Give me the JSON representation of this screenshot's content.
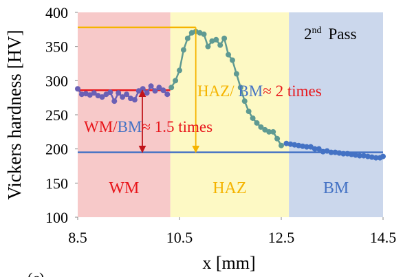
{
  "chart_data": {
    "type": "line",
    "y_label": "Vickers hardness [HV]",
    "x_label": "x [mm]",
    "panel_label": "(c)",
    "pass_label": {
      "main": "2",
      "sup": "nd",
      "rest": "Pass"
    },
    "xlim": [
      8.5,
      14.5
    ],
    "xticks": [
      8.5,
      10.5,
      12.5,
      14.5
    ],
    "ylim": [
      100,
      400
    ],
    "yticks": [
      100,
      150,
      200,
      250,
      300,
      350,
      400
    ],
    "regions": [
      {
        "label": "WM",
        "x": [
          8.5,
          10.32
        ],
        "fill": "#f7c9c9",
        "color": "#e8161b"
      },
      {
        "label": "HAZ",
        "x": [
          10.32,
          12.65
        ],
        "fill": "#fdf9c4",
        "color": "#f5b400"
      },
      {
        "label": "BM",
        "x": [
          12.65,
          14.5
        ],
        "fill": "#cbd7ec",
        "color": "#4472c4"
      }
    ],
    "series": [
      {
        "color": "#6a5fb5",
        "x": [
          8.5,
          8.58,
          8.66,
          8.74,
          8.82,
          8.9,
          8.98,
          9.06,
          9.14,
          9.22,
          9.3,
          9.38,
          9.46,
          9.54,
          9.62,
          9.7,
          9.78,
          9.86,
          9.94,
          10.02,
          10.1,
          10.18,
          10.26
        ],
        "values": [
          288,
          280,
          281,
          279,
          282,
          278,
          276,
          280,
          283,
          270,
          282,
          276,
          280,
          274,
          272,
          285,
          288,
          282,
          292,
          285,
          290,
          286,
          280
        ]
      },
      {
        "color": "#5f9a92",
        "x": [
          10.34,
          10.42,
          10.5,
          10.58,
          10.66,
          10.74,
          10.82,
          10.9,
          10.98,
          11.06,
          11.14,
          11.22,
          11.3,
          11.38,
          11.46,
          11.54,
          11.62,
          11.7,
          11.78,
          11.86,
          11.94,
          12.02,
          12.1,
          12.18,
          12.26,
          12.34,
          12.42,
          12.5
        ],
        "values": [
          290,
          300,
          315,
          345,
          362,
          370,
          372,
          370,
          368,
          350,
          358,
          360,
          352,
          362,
          338,
          330,
          310,
          290,
          270,
          255,
          245,
          238,
          232,
          228,
          225,
          225,
          215,
          205
        ]
      },
      {
        "color": "#4472c4",
        "x": [
          12.6,
          12.68,
          12.76,
          12.84,
          12.92,
          13.0,
          13.08,
          13.16,
          13.24,
          13.32,
          13.4,
          13.48,
          13.56,
          13.64,
          13.72,
          13.8,
          13.88,
          13.96,
          14.04,
          14.12,
          14.2,
          14.28,
          14.36,
          14.44,
          14.5
        ],
        "values": [
          208,
          207,
          206,
          205,
          204,
          203,
          203,
          200,
          200,
          196,
          197,
          195,
          195,
          194,
          193,
          193,
          192,
          191,
          190,
          190,
          189,
          188,
          187,
          187,
          189
        ]
      }
    ],
    "ref_lines": [
      {
        "y": 286,
        "x": [
          8.5,
          10.32
        ],
        "color": "#e8161b"
      },
      {
        "y": 195,
        "x": [
          8.5,
          14.5
        ],
        "color": "#4472c4"
      },
      {
        "y": 378,
        "x": [
          8.5,
          10.82
        ],
        "color": "#f5b400"
      }
    ],
    "arrows": [
      {
        "x": 9.77,
        "y": [
          286,
          195
        ],
        "color": "#c0141a",
        "double": true
      },
      {
        "x": 10.82,
        "y": [
          378,
          195
        ],
        "color": "#f5b400",
        "double": false
      }
    ],
    "annotations": [
      {
        "parts": [
          {
            "text": "WM/",
            "color": "#e8161b"
          },
          {
            "text": "BM",
            "color": "#4472c4"
          },
          {
            "text": "≈ 1.5 times",
            "color": "#e8161b"
          }
        ]
      },
      {
        "parts": [
          {
            "text": "HAZ/ ",
            "color": "#f5b400"
          },
          {
            "text": "BM",
            "color": "#4472c4"
          },
          {
            "text": "≈ 2 times",
            "color": "#e8161b"
          }
        ]
      }
    ]
  }
}
